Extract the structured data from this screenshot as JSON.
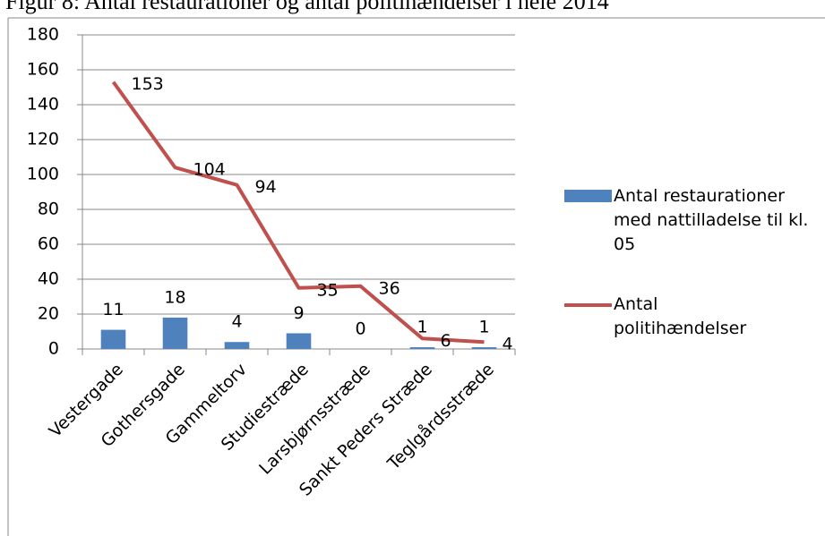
{
  "chart_data": {
    "type": "bar-line",
    "title": "Figur 8: Antal restaurationer og antal politihændelser i hele 2014",
    "categories": [
      "Vestergade",
      "Gothersgade",
      "Gammeltorv",
      "Studiestræde",
      "Larsbjørnsstræde",
      "Sankt Peders Stræde",
      "Teglgårdsstræde"
    ],
    "series": [
      {
        "name": "Antal restaurationer med nattilladelse til kl. 05",
        "color": "#4f81bd",
        "type": "bar",
        "values": [
          11,
          18,
          4,
          9,
          0,
          1,
          1
        ]
      },
      {
        "name": "Antal politihændelser",
        "color": "#c0504d",
        "type": "line",
        "values": [
          153,
          104,
          94,
          35,
          36,
          6,
          4
        ]
      }
    ],
    "ylim": [
      0,
      180
    ],
    "yticks": [
      0,
      20,
      40,
      60,
      80,
      100,
      120,
      140,
      160,
      180
    ],
    "grid": true,
    "legend": "right"
  }
}
